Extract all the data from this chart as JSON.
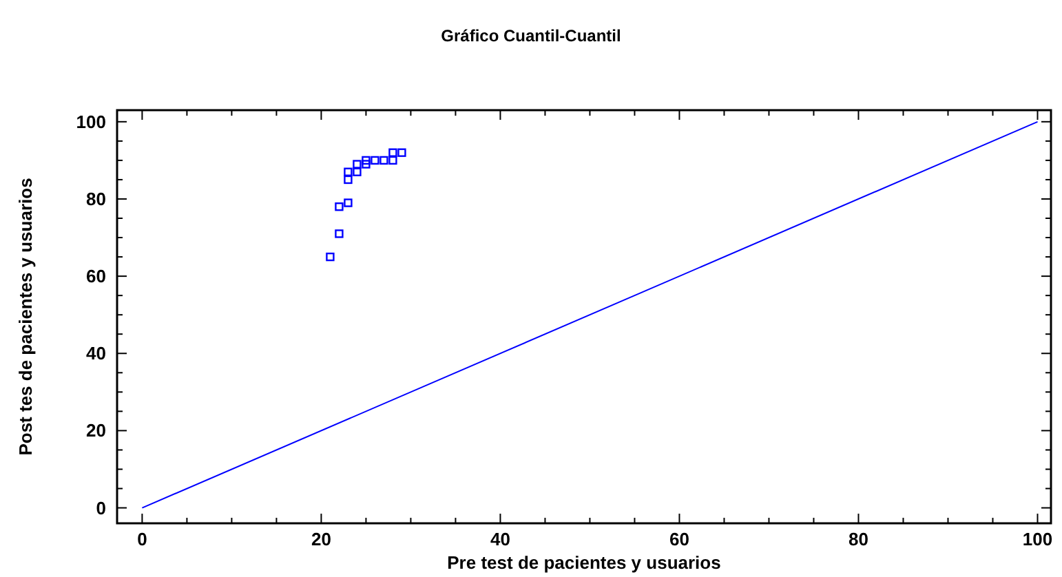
{
  "chart_data": {
    "type": "scatter",
    "title": "Gráfico Cuantil-Cuantil",
    "xlabel": "Pre test de pacientes y usuarios",
    "ylabel": "Post tes de pacientes y usuarios",
    "series": [
      {
        "color": "#0000ff",
        "marker": "square",
        "x": [
          21,
          22,
          22,
          23,
          23,
          23,
          24,
          24,
          25,
          25,
          26,
          27,
          28,
          28,
          29
        ],
        "values": [
          65,
          71,
          78,
          79,
          85,
          87,
          87,
          89,
          89,
          90,
          90,
          90,
          90,
          92,
          92
        ]
      },
      {
        "type": "line",
        "color": "#0000ff",
        "x": [
          0,
          100
        ],
        "values": [
          0,
          100
        ]
      }
    ],
    "xlim": [
      -2.8,
      101.5
    ],
    "ylim": [
      -4,
      103
    ],
    "xticks": [
      0,
      {
        "value": 5,
        "label": null
      },
      {
        "value": 10,
        "label": null
      },
      {
        "value": 15,
        "label": null
      },
      20,
      {
        "value": 25,
        "label": null
      },
      {
        "value": 30,
        "label": null
      },
      {
        "value": 35,
        "label": null
      },
      40,
      {
        "value": 45,
        "label": null
      },
      {
        "value": 50,
        "label": null
      },
      {
        "value": 55,
        "label": null
      },
      60,
      {
        "value": 65,
        "label": null
      },
      {
        "value": 70,
        "label": null
      },
      {
        "value": 75,
        "label": null
      },
      80,
      {
        "value": 85,
        "label": null
      },
      {
        "value": 90,
        "label": null
      },
      {
        "value": 95,
        "label": null
      },
      100
    ],
    "yticks": [
      0,
      {
        "value": 5,
        "label": null
      },
      {
        "value": 10,
        "label": null
      },
      {
        "value": 15,
        "label": null
      },
      20,
      {
        "value": 25,
        "label": null
      },
      {
        "value": 30,
        "label": null
      },
      {
        "value": 35,
        "label": null
      },
      40,
      {
        "value": 45,
        "label": null
      },
      {
        "value": 50,
        "label": null
      },
      {
        "value": 55,
        "label": null
      },
      60,
      {
        "value": 65,
        "label": null
      },
      {
        "value": 70,
        "label": null
      },
      {
        "value": 75,
        "label": null
      },
      80,
      {
        "value": 85,
        "label": null
      },
      {
        "value": 90,
        "label": null
      },
      {
        "value": 95,
        "label": null
      },
      100
    ],
    "grid": false
  }
}
